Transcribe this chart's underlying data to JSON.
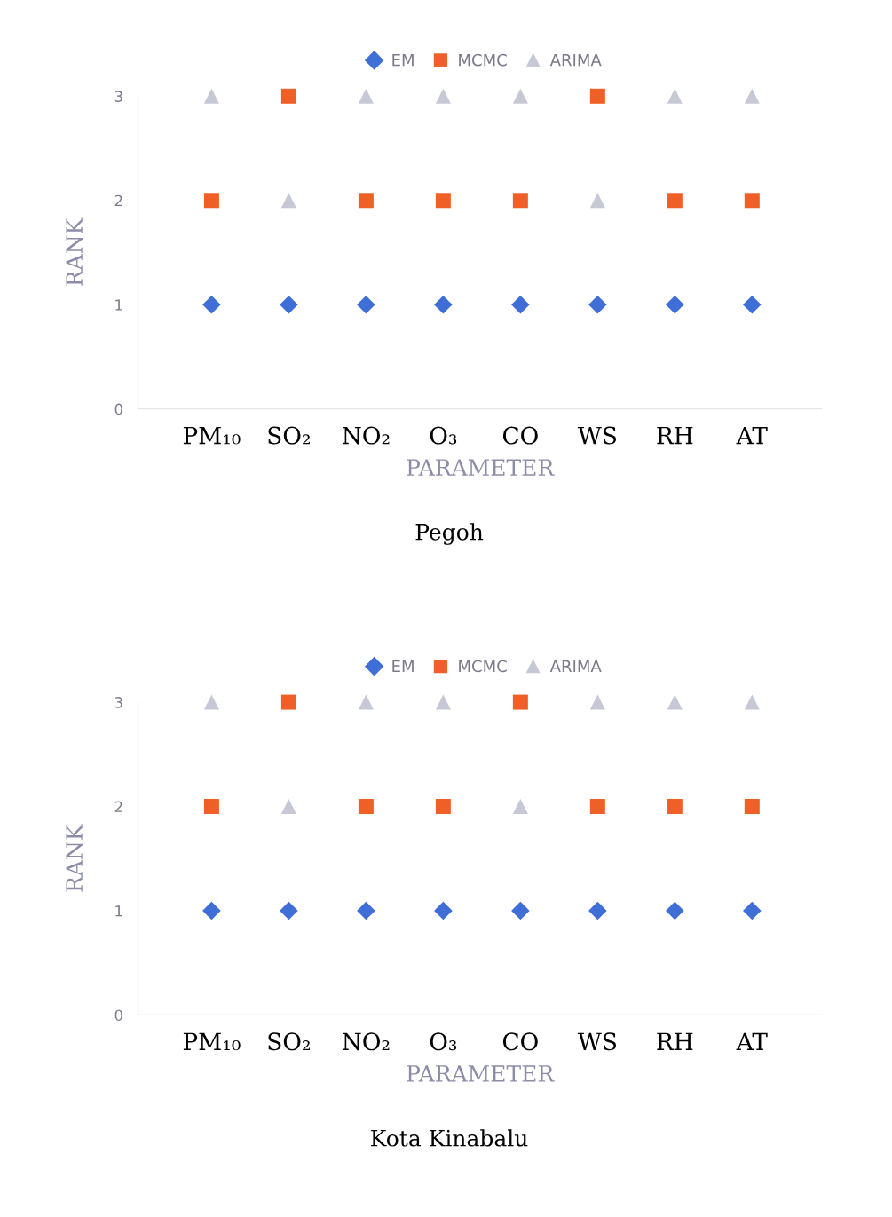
{
  "chart_data": [
    {
      "type": "scatter",
      "title": "Pegoh",
      "xlabel": "PARAMETER",
      "ylabel": "RANK",
      "categories": [
        "PM₁₀",
        "SO₂",
        "NO₂",
        "O₃",
        "CO",
        "WS",
        "RH",
        "AT"
      ],
      "ylim": [
        0,
        3
      ],
      "yticks": [
        0,
        1,
        2,
        3
      ],
      "grid": false,
      "legend": "top",
      "series": [
        {
          "name": "EM",
          "color": "#3f6fd6",
          "marker": "diamond",
          "values": [
            1,
            1,
            1,
            1,
            1,
            1,
            1,
            1
          ]
        },
        {
          "name": "MCMC",
          "color": "#ef6029",
          "marker": "square",
          "values": [
            2,
            3,
            2,
            2,
            2,
            3,
            2,
            2
          ]
        },
        {
          "name": "ARIMA",
          "color": "#c6c8d6",
          "marker": "triangle",
          "values": [
            3,
            2,
            3,
            3,
            3,
            2,
            3,
            3
          ]
        }
      ]
    },
    {
      "type": "scatter",
      "title": "Kota Kinabalu",
      "xlabel": "PARAMETER",
      "ylabel": "RANK",
      "categories": [
        "PM₁₀",
        "SO₂",
        "NO₂",
        "O₃",
        "CO",
        "WS",
        "RH",
        "AT"
      ],
      "ylim": [
        0,
        3
      ],
      "yticks": [
        0,
        1,
        2,
        3
      ],
      "grid": false,
      "legend": "top",
      "series": [
        {
          "name": "EM",
          "color": "#3f6fd6",
          "marker": "diamond",
          "values": [
            1,
            1,
            1,
            1,
            1,
            1,
            1,
            1
          ]
        },
        {
          "name": "MCMC",
          "color": "#ef6029",
          "marker": "square",
          "values": [
            2,
            3,
            2,
            2,
            3,
            2,
            2,
            2
          ]
        },
        {
          "name": "ARIMA",
          "color": "#c6c8d6",
          "marker": "triangle",
          "values": [
            3,
            2,
            3,
            3,
            2,
            3,
            3,
            3
          ]
        }
      ]
    }
  ]
}
